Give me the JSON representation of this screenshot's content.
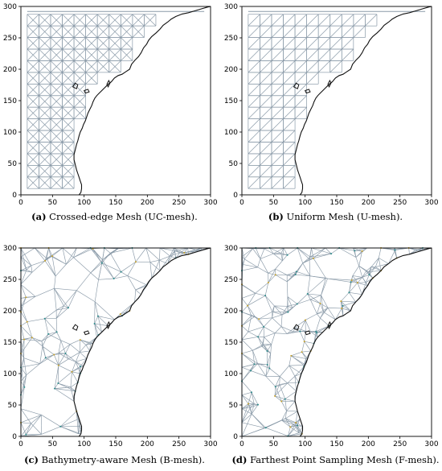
{
  "panels": [
    {
      "id": "a",
      "letter": "(a)",
      "caption": "Crossed-edge Mesh (UC-mesh).",
      "mesh": "crossed"
    },
    {
      "id": "b",
      "letter": "(b)",
      "caption": "Uniform Mesh (U-mesh).",
      "mesh": "uniform"
    },
    {
      "id": "c",
      "letter": "(c)",
      "caption": "Bathymetry-aware Mesh (B-mesh).",
      "mesh": "bathymetry"
    },
    {
      "id": "d",
      "letter": "(d)",
      "caption": "Farthest Point Sampling Mesh (F-mesh).",
      "mesh": "fps"
    }
  ],
  "axes": {
    "xlim": [
      0,
      300
    ],
    "ylim": [
      0,
      300
    ],
    "x_ticks": [
      "0",
      "50",
      "100",
      "150",
      "200",
      "250",
      "300"
    ],
    "y_ticks": [
      "0",
      "50",
      "100",
      "150",
      "200",
      "250",
      "300"
    ]
  },
  "colors": {
    "mesh_edge": "#8a9aa8",
    "coastline": "#111111",
    "node_accent": "#c9a227",
    "node_teal": "#2b8a8a"
  }
}
